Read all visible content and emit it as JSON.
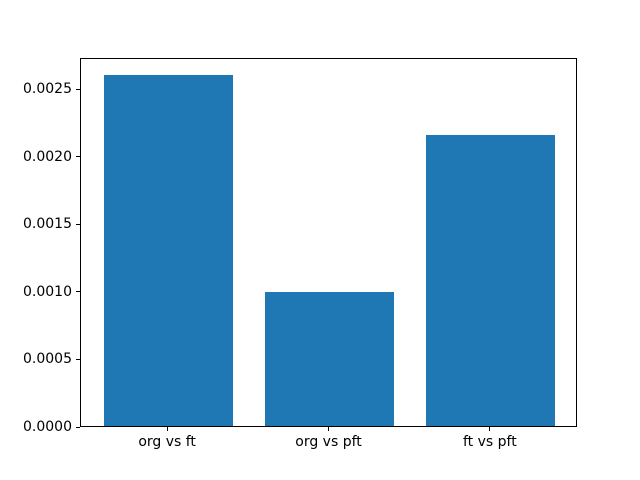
{
  "chart_data": {
    "type": "bar",
    "title": "",
    "xlabel": "",
    "ylabel": "",
    "categories": [
      "org vs ft",
      "org vs pft",
      "ft vs pft"
    ],
    "values": [
      0.0026,
      0.00099,
      0.00215
    ],
    "bar_color": "#1f77b4",
    "axis_color": "#000000",
    "background_color": "#ffffff",
    "ylim": [
      0,
      0.00273
    ],
    "xlim": [
      -0.54,
      2.54
    ],
    "bar_width": 0.8,
    "yticks": [
      0,
      0.0005,
      0.001,
      0.0015,
      0.002,
      0.0025
    ],
    "ytick_labels": [
      "0.0000",
      "0.0005",
      "0.0010",
      "0.0015",
      "0.0020",
      "0.0025"
    ],
    "ytick_decimals": 4,
    "grid": false,
    "legend": null
  }
}
